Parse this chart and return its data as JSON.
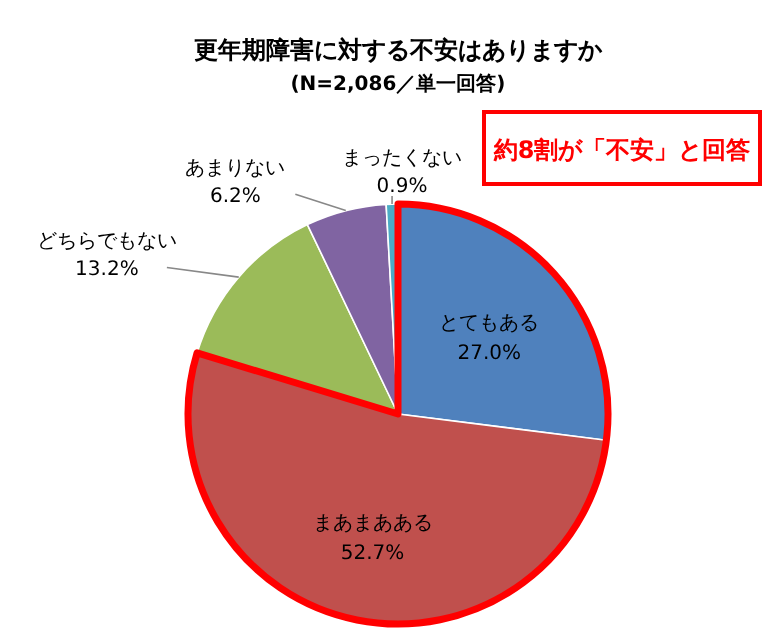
{
  "chart_data": {
    "type": "pie",
    "title": "更年期障害に対する不安はありますか",
    "subtitle": "(N=2,086／単一回答)",
    "categories": [
      "とてもある",
      "まあまあある",
      "どちらでもない",
      "あまりない",
      "まったくない"
    ],
    "values": [
      27.0,
      52.7,
      13.2,
      6.2,
      0.9
    ],
    "value_labels": [
      "27.0%",
      "52.7%",
      "13.2%",
      "6.2%",
      "0.9%"
    ],
    "colors": [
      "#4f81bd",
      "#c0504d",
      "#9bbb59",
      "#8064a2",
      "#4bacc6"
    ],
    "annotations": [
      "約8割が「不安」と回答"
    ],
    "legend": false
  }
}
